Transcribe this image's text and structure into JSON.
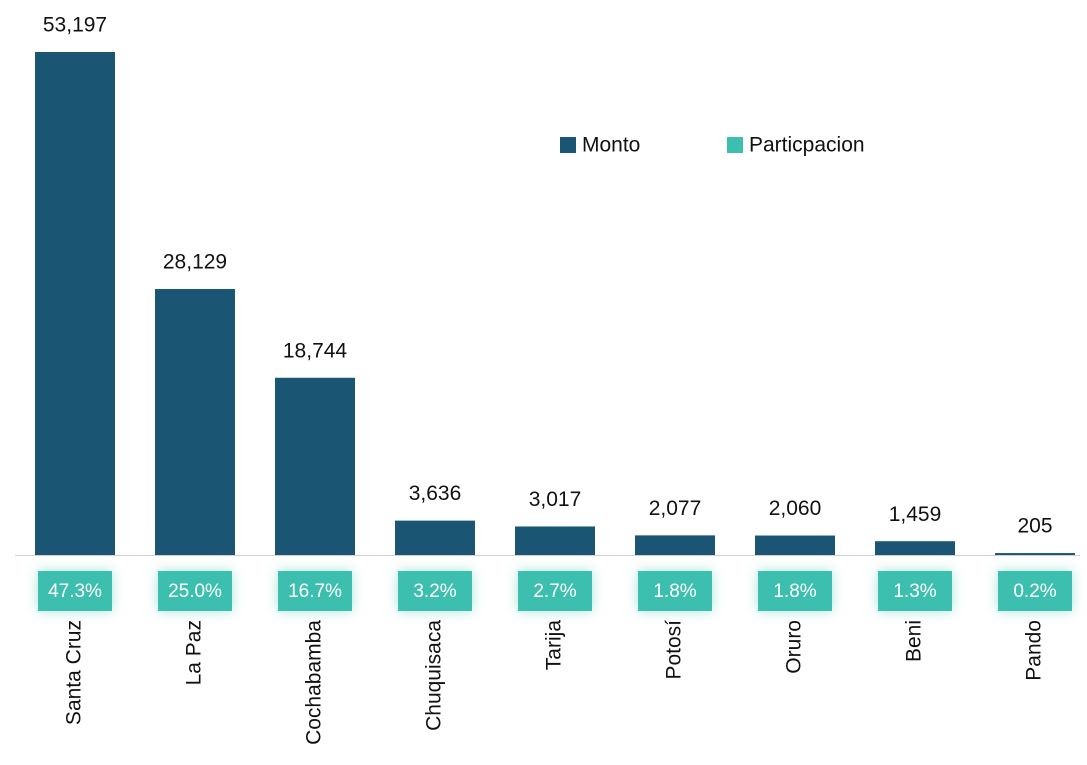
{
  "chart_data": {
    "type": "bar",
    "categories": [
      "Santa Cruz",
      "La Paz",
      "Cochabamba",
      "Chuquisaca",
      "Tarija",
      "Potosí",
      "Oruro",
      "Beni",
      "Pando"
    ],
    "series": [
      {
        "name": "Monto",
        "color": "#1a5674",
        "values": [
          53197,
          28129,
          18744,
          3636,
          3017,
          2077,
          2060,
          1459,
          205
        ],
        "value_labels": [
          "53,197",
          "28,129",
          "18,744",
          "3,636",
          "3,017",
          "2,077",
          "2,060",
          "1,459",
          "205"
        ]
      },
      {
        "name": "Particpacion",
        "color": "#3dbfb0",
        "values": [
          47.3,
          25.0,
          16.7,
          3.2,
          2.7,
          1.8,
          1.8,
          1.3,
          0.2
        ],
        "value_labels": [
          "47.3%",
          "25.0%",
          "16.7%",
          "3.2%",
          "2.7%",
          "1.8%",
          "1.8%",
          "1.3%",
          "0.2%"
        ]
      }
    ]
  }
}
